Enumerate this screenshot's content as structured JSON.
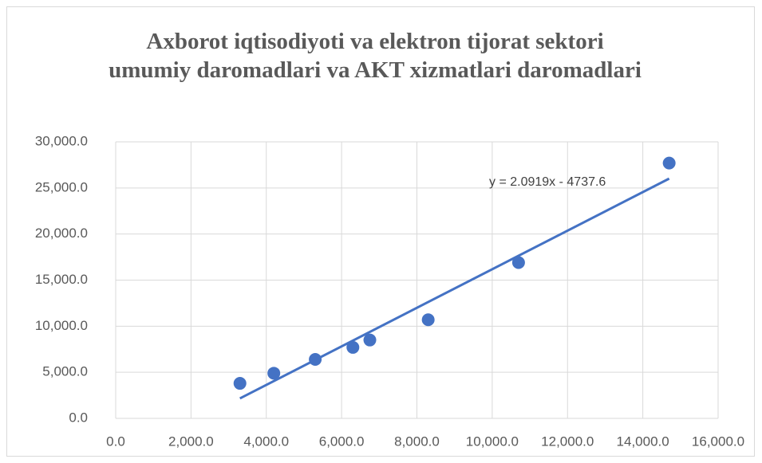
{
  "chart_data": {
    "type": "scatter",
    "title": "Axborot iqtisodiyoti va elektron tijorat sektori umumiy daromadlari va AKT xizmatlari daromadlari",
    "series": [
      {
        "color": "#4472c4",
        "x": [
          3300,
          4200,
          5300,
          6300,
          6750,
          8300,
          10700,
          14700
        ],
        "values": [
          3800,
          4900,
          6400,
          7700,
          8500,
          10700,
          16900,
          27700
        ]
      }
    ],
    "trendline": {
      "slope": 2.0919,
      "intercept": -4737.6,
      "color": "#4472c4",
      "label": "y = 2.0919x - 4737.6"
    },
    "xlim": [
      0,
      16000
    ],
    "xticks": [
      {
        "value": 0,
        "label": "0.0"
      },
      {
        "value": 2000,
        "label": "2,000.0"
      },
      {
        "value": 4000,
        "label": "4,000.0"
      },
      {
        "value": 6000,
        "label": "6,000.0"
      },
      {
        "value": 8000,
        "label": "8,000.0"
      },
      {
        "value": 10000,
        "label": "10,000.0"
      },
      {
        "value": 12000,
        "label": "12,000.0"
      },
      {
        "value": 14000,
        "label": "14,000.0"
      },
      {
        "value": 16000,
        "label": "16,000.0"
      }
    ],
    "ylim": [
      0,
      30000
    ],
    "yticks": [
      {
        "value": 0,
        "label": "0.0"
      },
      {
        "value": 5000,
        "label": "5,000.0"
      },
      {
        "value": 10000,
        "label": "10,000.0"
      },
      {
        "value": 15000,
        "label": "15,000.0"
      },
      {
        "value": 20000,
        "label": "20,000.0"
      },
      {
        "value": 25000,
        "label": "25,000.0"
      },
      {
        "value": 30000,
        "label": "30,000.0"
      }
    ],
    "grid": true
  }
}
